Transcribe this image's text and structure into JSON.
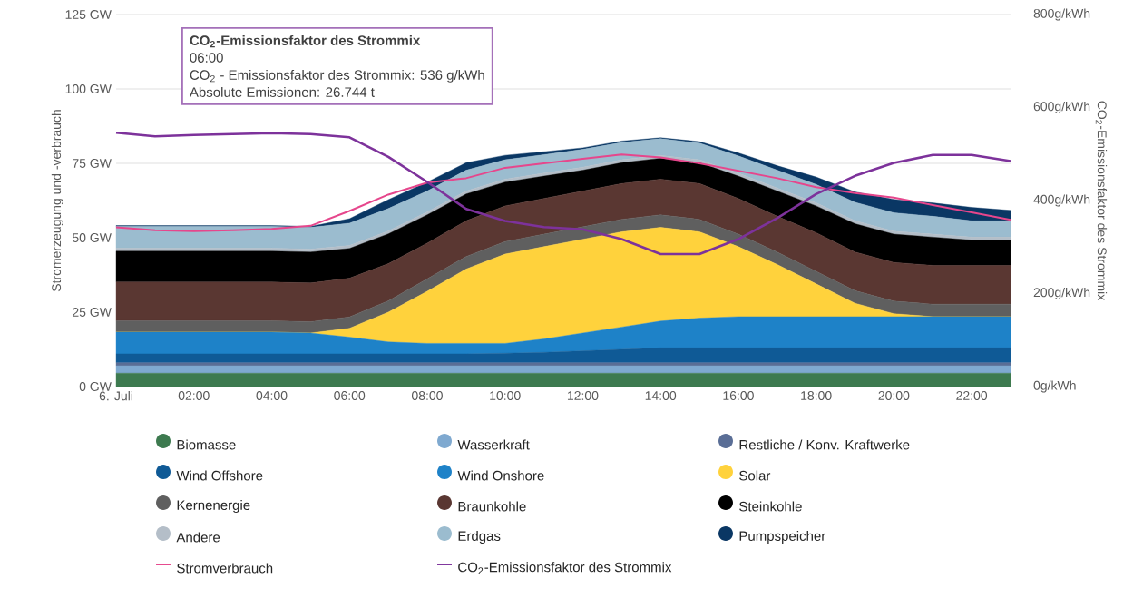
{
  "chart_data": {
    "type": "area",
    "stacked": true,
    "ylabel": "Stromerzeugung und -verbrauch",
    "y2label": "CO$_{2}$-Emissionsfaktor des Strommix",
    "x": [
      0,
      1,
      2,
      3,
      4,
      5,
      6,
      7,
      8,
      9,
      10,
      11,
      12,
      13,
      14,
      15,
      16,
      17,
      18,
      19,
      20,
      21,
      22,
      23
    ],
    "xlim": [
      0,
      23
    ],
    "xticks": [
      {
        "value": 0,
        "label": "6. Juli"
      },
      {
        "value": 2,
        "label": "02:00"
      },
      {
        "value": 4,
        "label": "04:00"
      },
      {
        "value": 6,
        "label": "06:00"
      },
      {
        "value": 8,
        "label": "08:00"
      },
      {
        "value": 10,
        "label": "10:00"
      },
      {
        "value": 12,
        "label": "12:00"
      },
      {
        "value": 14,
        "label": "14:00"
      },
      {
        "value": 16,
        "label": "16:00"
      },
      {
        "value": 18,
        "label": "18:00"
      },
      {
        "value": 20,
        "label": "20:00"
      },
      {
        "value": 22,
        "label": "22:00"
      }
    ],
    "ylim": [
      0,
      125
    ],
    "yticks": [
      {
        "value": 0,
        "label": "0 GW"
      },
      {
        "value": 25,
        "label": "25 GW"
      },
      {
        "value": 50,
        "label": "50 GW"
      },
      {
        "value": 75,
        "label": "75 GW"
      },
      {
        "value": 100,
        "label": "100 GW"
      },
      {
        "value": 125,
        "label": "125 GW"
      }
    ],
    "y2lim": [
      0,
      800
    ],
    "y2ticks": [
      {
        "value": 0,
        "label": "0g/kWh"
      },
      {
        "value": 200,
        "label": "200g/kWh"
      },
      {
        "value": 400,
        "label": "400g/kWh"
      },
      {
        "value": 600,
        "label": "600g/kWh"
      },
      {
        "value": 800,
        "label": "800g/kWh"
      }
    ],
    "grid": "y",
    "legend": "bottom",
    "series": [
      {
        "name": "Biomasse",
        "color": "#3d7a4f",
        "values": [
          4.5,
          4.5,
          4.5,
          4.5,
          4.5,
          4.5,
          4.5,
          4.5,
          4.5,
          4.5,
          4.5,
          4.5,
          4.5,
          4.5,
          4.5,
          4.5,
          4.5,
          4.5,
          4.5,
          4.5,
          4.5,
          4.5,
          4.5,
          4.5
        ]
      },
      {
        "name": "Wasserkraft",
        "color": "#7fa9d0",
        "values": [
          2.5,
          2.5,
          2.5,
          2.5,
          2.5,
          2.5,
          2.5,
          2.5,
          2.5,
          2.5,
          2.5,
          2.5,
          2.5,
          2.5,
          2.5,
          2.5,
          2.5,
          2.5,
          2.5,
          2.5,
          2.5,
          2.5,
          2.5,
          2.5
        ]
      },
      {
        "name": "Restliche / Konv. Kraftwerke",
        "color": "#5a6e96",
        "values": [
          1,
          1,
          1,
          1,
          1,
          1,
          1,
          1,
          1,
          1,
          1,
          1,
          1,
          1,
          1,
          1,
          1,
          1,
          1,
          1,
          1,
          1,
          1,
          1
        ]
      },
      {
        "name": "Wind Offshore",
        "color": "#0f5a96",
        "values": [
          3,
          3,
          3,
          3,
          3,
          3,
          3,
          3,
          3,
          3,
          3.2,
          3.5,
          4,
          4.5,
          5,
          5,
          5,
          5,
          5,
          5,
          5,
          5,
          5,
          5
        ]
      },
      {
        "name": "Wind Onshore",
        "color": "#1e82c8",
        "values": [
          7.3,
          7.3,
          7.3,
          7.3,
          7.3,
          7,
          5.6,
          4,
          3.5,
          3.5,
          3.3,
          4.5,
          6,
          7.5,
          9,
          10,
          10.5,
          10.5,
          10.5,
          10.5,
          10.5,
          10.5,
          10.5,
          10.5
        ]
      },
      {
        "name": "Solar",
        "color": "#ffd23c",
        "values": [
          0,
          0,
          0,
          0,
          0,
          0,
          3,
          10,
          17.5,
          25,
          30,
          31,
          31.5,
          32,
          31.5,
          29,
          23.5,
          17.5,
          11,
          4.5,
          1,
          0,
          0,
          0
        ]
      },
      {
        "name": "Kernenergie",
        "color": "#5f5f5f",
        "values": [
          3.8,
          3.8,
          3.8,
          3.8,
          3.8,
          3.8,
          3.8,
          3.8,
          4.2,
          4.2,
          4.2,
          4.2,
          4.2,
          4.2,
          4.2,
          4.2,
          4.2,
          4.2,
          4.2,
          4.2,
          4.2,
          4.2,
          4.2,
          4.2
        ]
      },
      {
        "name": "Braunkohle",
        "color": "#5a3732",
        "values": [
          13,
          13,
          13,
          13,
          13,
          13,
          13,
          12.5,
          12,
          12,
          12,
          12,
          12,
          12,
          12,
          12,
          12,
          12,
          13,
          13,
          13,
          13,
          13,
          13
        ]
      },
      {
        "name": "Steinkohle",
        "color": "#000000",
        "values": [
          10.4,
          10.4,
          10.4,
          10.4,
          10.4,
          10.4,
          10,
          10,
          9.5,
          9,
          8,
          7.5,
          7,
          7,
          7,
          7,
          7.5,
          8.5,
          9,
          9.5,
          9.5,
          9.5,
          8.5,
          8.5
        ]
      },
      {
        "name": "Andere",
        "color": "#b4bec8",
        "values": [
          1,
          1,
          1,
          1,
          1,
          1,
          1,
          1,
          1,
          1,
          1,
          1,
          1,
          1,
          1,
          1,
          1,
          1,
          1,
          1,
          1,
          1,
          1,
          1
        ]
      },
      {
        "name": "Erdgas",
        "color": "#9bbccf",
        "values": [
          7.3,
          7.3,
          7.3,
          7.3,
          7.3,
          7.3,
          7.5,
          7.5,
          7,
          7,
          6.5,
          6.2,
          6,
          5.8,
          5.6,
          5.6,
          5.8,
          6,
          6.2,
          6.2,
          6.2,
          6,
          5.5,
          5.5
        ]
      },
      {
        "name": "Pumpspeicher",
        "color": "#0a3764",
        "values": [
          0.3,
          0.3,
          0.3,
          0.3,
          0.3,
          0.3,
          1.5,
          3,
          3,
          2.5,
          1.5,
          1,
          0.5,
          0.5,
          0.3,
          0.5,
          1,
          1.5,
          2.5,
          3.5,
          4.5,
          4.5,
          4.5,
          3.5
        ]
      },
      {
        "name": "Stromverbrauch",
        "type": "line",
        "color": "#e6468c",
        "values": [
          53.5,
          52.5,
          52.2,
          52.5,
          53,
          54,
          59,
          64.5,
          68.5,
          70,
          73.5,
          75,
          76.5,
          78,
          77,
          75,
          72.5,
          70,
          67,
          65,
          63.5,
          61,
          58.5,
          56
        ]
      },
      {
        "name": "CO$_{2}$-Emissionsfaktor des Strommix",
        "type": "line",
        "axis": "y2",
        "color": "#7d329b",
        "values": [
          546,
          538,
          541,
          543,
          545,
          543,
          536,
          494,
          440,
          382,
          356,
          343,
          338,
          317,
          285,
          285,
          317,
          362,
          414,
          453,
          481,
          498,
          498,
          485
        ]
      }
    ],
    "annotations": [
      "CO$_{2}$-Emissionsfaktor des Strommix",
      "06:00",
      "CO$_{2}$ - Emissionsfaktor des Strommix: 536 g/kWh",
      "Absolute Emissionen: 26.744 t"
    ]
  }
}
